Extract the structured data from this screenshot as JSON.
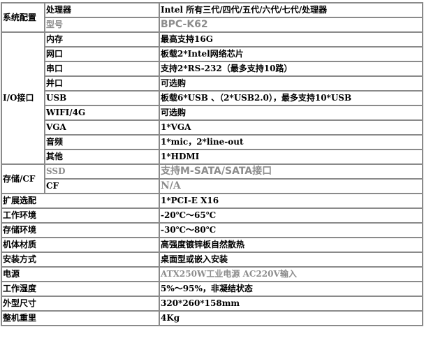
{
  "groups": {
    "system": "系统配置",
    "io": "I/O接口",
    "storage": "存储/CF"
  },
  "rows": [
    {
      "label": "处理器",
      "value": "Intel 所有三代/四代/五代/六代/七代/处理器"
    },
    {
      "label": "型号",
      "value": "BPC-K62",
      "muted": true
    },
    {
      "label": "内存",
      "value": "最高支持16G"
    },
    {
      "label": "网口",
      "value": "板载2*Intel网络芯片"
    },
    {
      "label": "串口",
      "value": "支持2*RS-232（最多支持10路）"
    },
    {
      "label": "并口",
      "value": "可选购"
    },
    {
      "label": "USB",
      "value": "板载6*USB 、（2*USB2.0），最多支持10*USB"
    },
    {
      "label": "WIFI/4G",
      "value": "可选购"
    },
    {
      "label": "VGA",
      "value": "1*VGA"
    },
    {
      "label": "音频",
      "value": "1*mic，2*line-out"
    },
    {
      "label": "其他",
      "value": "1*HDMI"
    },
    {
      "label": "SSD",
      "value": "支持M-SATA/SATA接口",
      "muted": true
    },
    {
      "label": "CF",
      "value": "N/A",
      "muted": true
    },
    {
      "label": "扩展选配",
      "value": "1*PCI-E X16"
    },
    {
      "label": "工作环境",
      "value": "-20℃～65℃"
    },
    {
      "label": "存储环境",
      "value": "-30℃～80℃"
    },
    {
      "label": "机体材质",
      "value": "高强度镀锌板自然散热"
    },
    {
      "label": "安装方式",
      "value": "桌面型或嵌入安装"
    },
    {
      "label": "电源",
      "value": "ATX250W工业电源 AC220V输入",
      "muted": true
    },
    {
      "label": "工作湿度",
      "value": "5%～95%，非凝结状态"
    },
    {
      "label": "外型尺寸",
      "value": "320*260*158mm"
    },
    {
      "label": "整机重里",
      "value": "4Kg"
    }
  ]
}
